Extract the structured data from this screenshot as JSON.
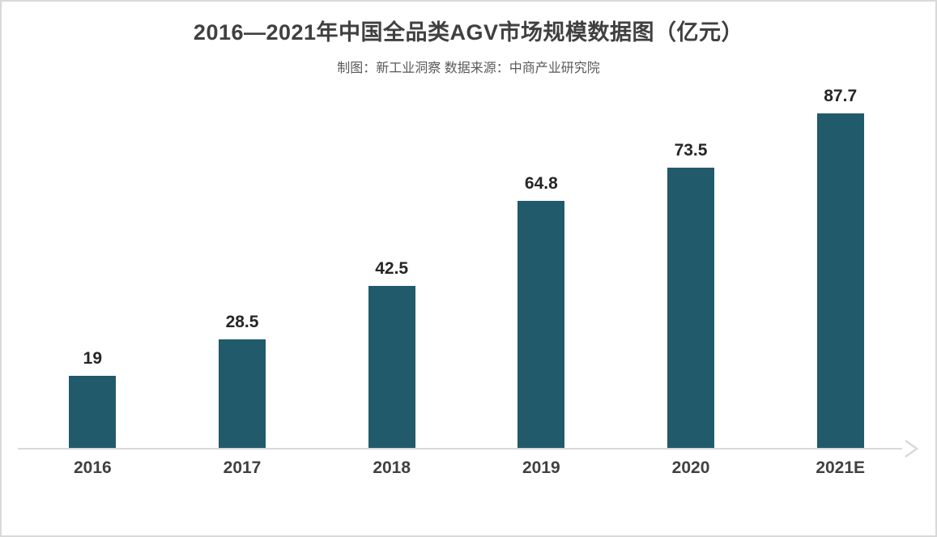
{
  "page": {
    "background_color": "#FFFFFF",
    "border_color": "#D9D9D9"
  },
  "chart_data": {
    "type": "bar",
    "title": "2016—2021年中国全品类AGV市场规模数据图（亿元）",
    "subtitle": "制图：新工业洞察  数据来源：中商产业研究院",
    "categories": [
      "2016",
      "2017",
      "2018",
      "2019",
      "2020",
      "2021E"
    ],
    "values": [
      19,
      28.5,
      42.5,
      64.8,
      73.5,
      87.7
    ],
    "value_labels": [
      "19",
      "28.5",
      "42.5",
      "64.8",
      "73.5",
      "87.7"
    ],
    "xlabel": "",
    "ylabel": "",
    "ylim": [
      0,
      96
    ],
    "grid": false,
    "legend": "none",
    "y_axis_visible": false,
    "x_axis_arrow": true,
    "bar_color": "#215A6B",
    "axis_color": "#D9D9D9",
    "value_label_color": "#262626",
    "category_label_color": "#404040",
    "title_color": "#404040",
    "subtitle_color": "#595959"
  }
}
